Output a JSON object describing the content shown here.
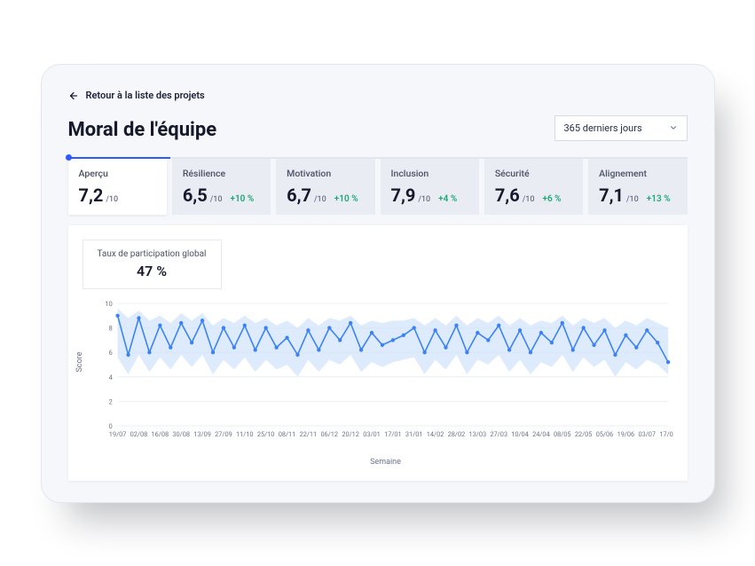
{
  "back_label": "Retour à la liste des projets",
  "page_title": "Moral de l'équipe",
  "range": {
    "label": "365 derniers jours"
  },
  "tabs": [
    {
      "label": "Aperçu",
      "score": "7,2",
      "out_of": "/10",
      "delta": ""
    },
    {
      "label": "Résilience",
      "score": "6,5",
      "out_of": "/10",
      "delta": "+10 %"
    },
    {
      "label": "Motivation",
      "score": "6,7",
      "out_of": "/10",
      "delta": "+10 %"
    },
    {
      "label": "Inclusion",
      "score": "7,9",
      "out_of": "/10",
      "delta": "+4 %"
    },
    {
      "label": "Sécurité",
      "score": "7,6",
      "out_of": "/10",
      "delta": "+6 %"
    },
    {
      "label": "Alignement",
      "score": "7,1",
      "out_of": "/10",
      "delta": "+13 %"
    }
  ],
  "participation": {
    "label": "Taux de participation global",
    "value": "47 %"
  },
  "chart": {
    "type": "line-with-area",
    "ylabel": "Score",
    "xlabel": "Semaine",
    "ylim": [
      0,
      10
    ],
    "ytick_step": 2,
    "background_color": "#ffffff",
    "grid_color": "#eceff4",
    "line_color": "#3b82f6",
    "line_width": 1.6,
    "marker": {
      "shape": "circle",
      "radius": 2.2,
      "fill": "#3b82f6"
    },
    "band_fill": "#cfe3fb",
    "band_opacity": 0.7,
    "axis_text_color": "#6b7188",
    "axis_font_size": 7.5,
    "x_labels": [
      "19/07",
      "02/08",
      "16/08",
      "30/08",
      "13/09",
      "27/09",
      "11/10",
      "25/10",
      "08/11",
      "22/11",
      "06/12",
      "20/12",
      "03/01",
      "17/01",
      "31/01",
      "14/02",
      "28/02",
      "13/03",
      "27/03",
      "10/04",
      "24/04",
      "08/05",
      "22/05",
      "05/06",
      "19/06",
      "03/07",
      "17/07"
    ],
    "values": [
      9.0,
      5.8,
      8.8,
      6.0,
      8.2,
      6.4,
      8.4,
      6.8,
      8.6,
      6.0,
      8.0,
      6.4,
      8.2,
      6.2,
      8.0,
      6.4,
      7.2,
      5.8,
      7.8,
      6.2,
      8.0,
      7.0,
      8.4,
      6.2,
      7.6,
      6.6,
      7.0,
      7.4,
      8.0,
      6.0,
      7.8,
      6.4,
      8.2,
      6.0,
      7.6,
      7.0,
      8.2,
      6.2,
      7.8,
      6.0,
      7.6,
      6.8,
      8.4,
      6.2,
      8.0,
      6.6,
      7.8,
      5.8,
      7.4,
      6.4,
      7.8,
      6.8,
      5.2
    ],
    "upper": [
      9.6,
      8.8,
      9.4,
      8.6,
      9.0,
      8.4,
      9.2,
      8.6,
      9.2,
      8.2,
      8.8,
      8.4,
      9.0,
      8.4,
      8.8,
      8.2,
      8.6,
      8.0,
      8.8,
      8.2,
      8.8,
      8.6,
      9.0,
      8.2,
      8.6,
      8.4,
      8.6,
      8.6,
      8.8,
      8.2,
      8.8,
      8.2,
      9.0,
      8.2,
      8.8,
      8.4,
      9.0,
      8.2,
      8.8,
      8.2,
      8.6,
      8.4,
      9.0,
      8.2,
      8.8,
      8.4,
      8.8,
      8.0,
      8.6,
      8.2,
      8.8,
      8.4,
      8.0
    ],
    "lower": [
      5.6,
      4.2,
      5.8,
      4.4,
      5.6,
      4.6,
      5.8,
      4.8,
      5.8,
      4.2,
      5.4,
      4.6,
      5.6,
      4.4,
      5.4,
      4.6,
      5.0,
      4.0,
      5.4,
      4.4,
      5.4,
      5.0,
      5.8,
      4.4,
      5.2,
      4.8,
      5.2,
      5.4,
      5.6,
      4.2,
      5.4,
      4.6,
      5.8,
      4.2,
      5.4,
      5.0,
      5.8,
      4.4,
      5.4,
      4.2,
      5.2,
      4.8,
      5.8,
      4.4,
      5.6,
      4.8,
      5.4,
      4.0,
      5.2,
      4.6,
      5.4,
      5.0,
      4.2
    ]
  }
}
